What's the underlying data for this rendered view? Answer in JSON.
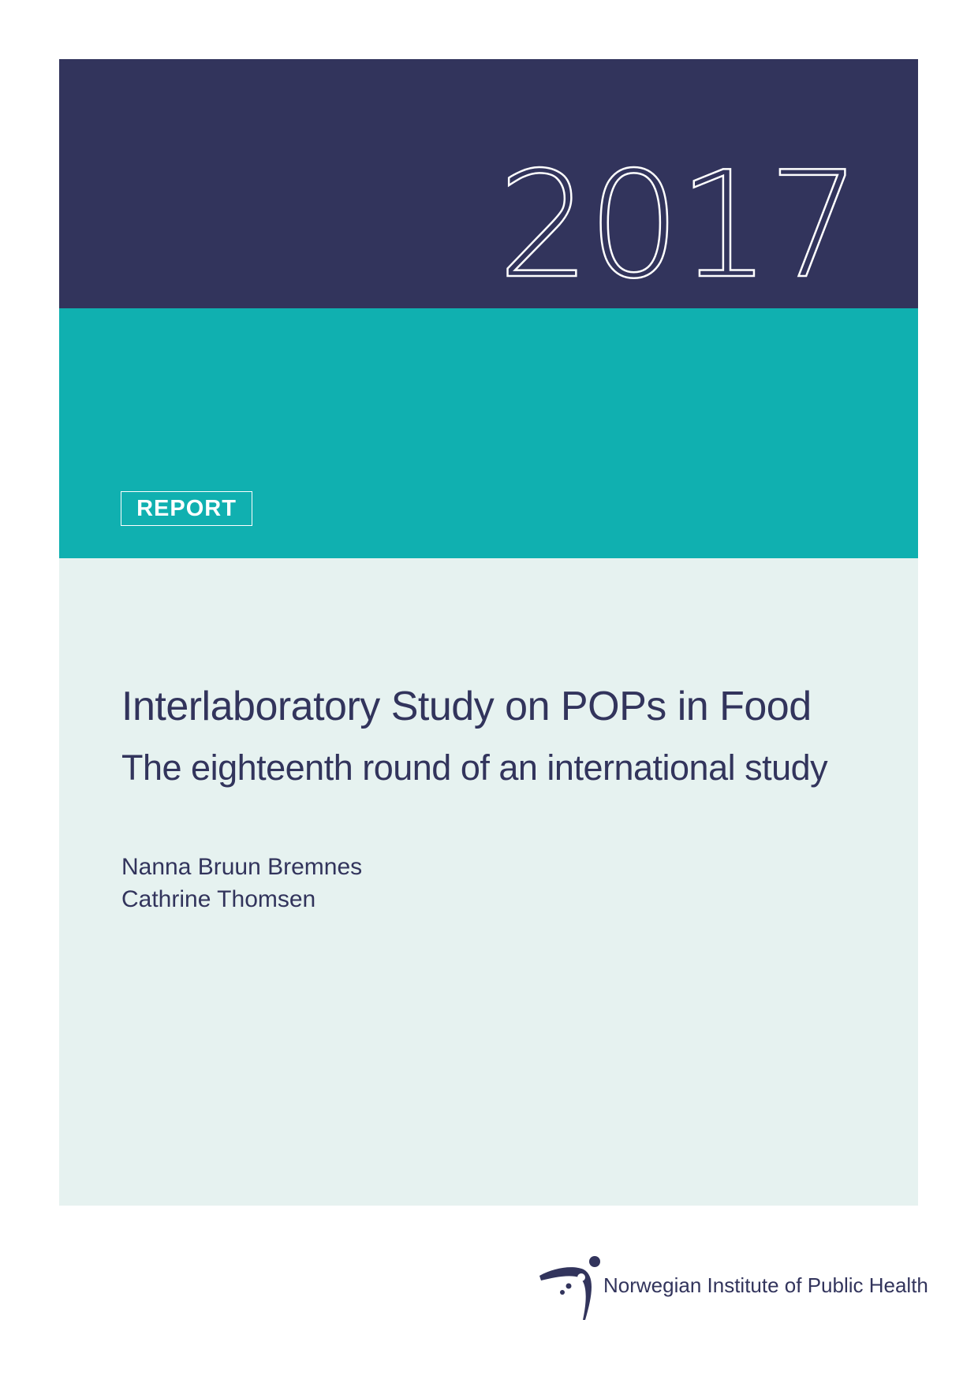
{
  "cover": {
    "year": "2017",
    "badge": "REPORT",
    "title": "Interlaboratory Study on POPs in Food",
    "subtitle": "The eighteenth round of an international study",
    "authors": [
      "Nanna Bruun Bremnes",
      "Cathrine Thomsen"
    ]
  },
  "publisher": {
    "name": "Norwegian Institute of Public Health",
    "logo_icon": "fhi-figure-logo"
  },
  "colors": {
    "navy": "#32345c",
    "teal": "#10b0b0",
    "light": "#e6f2f0"
  }
}
